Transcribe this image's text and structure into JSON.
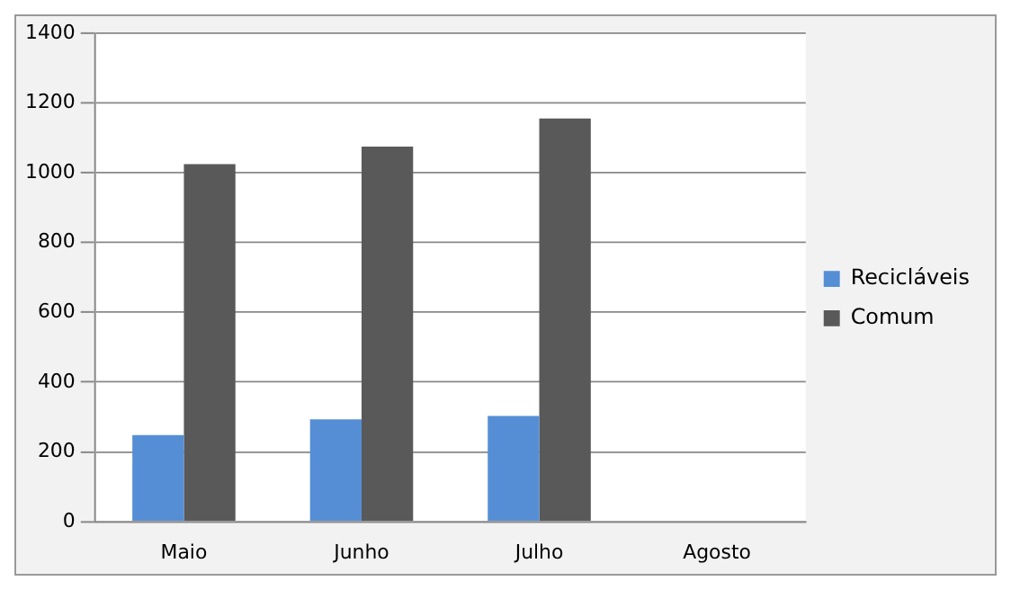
{
  "chart_data": {
    "type": "bar",
    "categories": [
      "Maio",
      "Junho",
      "Julho",
      "Agosto"
    ],
    "series": [
      {
        "name": "Recicláveis",
        "color": "#558ed5",
        "values": [
          248,
          293,
          303,
          null
        ]
      },
      {
        "name": "Comum",
        "color": "#595959",
        "values": [
          1025,
          1075,
          1156,
          null
        ]
      }
    ],
    "ylim": [
      0,
      1400
    ],
    "yticks": [
      0,
      200,
      400,
      600,
      800,
      1000,
      1200,
      1400
    ],
    "grid": "y",
    "legend": "right"
  }
}
